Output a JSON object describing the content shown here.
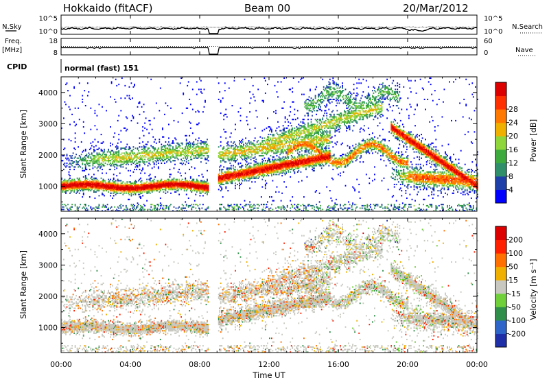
{
  "header": {
    "station": "Hokkaido (fitACF)",
    "beam": "Beam 00",
    "date": "20/Mar/2012"
  },
  "nsky_panel": {
    "left_label": "N.Sky",
    "right_label": "N.Search",
    "left_ticks": [
      "10^5",
      "10^0"
    ],
    "right_ticks": [
      "10^5",
      "10^0"
    ]
  },
  "freq_panel": {
    "left_label_1": "Freq.",
    "left_label_2": "[MHz]",
    "right_label": "Nave",
    "left_ticks": [
      "18",
      "8"
    ],
    "right_ticks": [
      "60",
      "0"
    ]
  },
  "cpid": {
    "label": "CPID",
    "value": "normal (fast) 151"
  },
  "chart_data": [
    {
      "type": "heatmap",
      "name": "power",
      "ylabel": "Slant Range [km]",
      "ylim": [
        200,
        4500
      ],
      "yticks": [
        "1000",
        "2000",
        "3000",
        "4000"
      ],
      "colorbar_label": "Power [dB]",
      "colorbar_ticks": [
        "4",
        "8",
        "12",
        "16",
        "20",
        "24",
        "28"
      ],
      "colors": [
        "#0000ff",
        "#1f3fa8",
        "#2f8f6a",
        "#3daa3d",
        "#8fd63a",
        "#f0b000",
        "#ff7800",
        "#ff3000",
        "#dd0000"
      ],
      "data_gap_ut": [
        8.5,
        9.0
      ]
    },
    {
      "type": "heatmap",
      "name": "velocity",
      "ylabel": "Slant Range [km]",
      "ylim": [
        200,
        4500
      ],
      "yticks": [
        "1000",
        "2000",
        "3000",
        "4000"
      ],
      "colorbar_label": "Velocity [m s⁻¹]",
      "colorbar_ticks": [
        "200",
        "100",
        "50",
        "15",
        "-15",
        "-50",
        "-100",
        "-200"
      ],
      "colors": [
        "#1f2fa8",
        "#2d66c8",
        "#2f8f4a",
        "#6fd03a",
        "#c8c8c0",
        "#f0b000",
        "#ff7000",
        "#ff2000",
        "#dd0000"
      ],
      "data_gap_ut": [
        8.5,
        9.0
      ]
    }
  ],
  "xaxis": {
    "label": "Time UT",
    "ticks": [
      "00:00",
      "04:00",
      "08:00",
      "12:00",
      "16:00",
      "20:00",
      "00:00"
    ]
  }
}
